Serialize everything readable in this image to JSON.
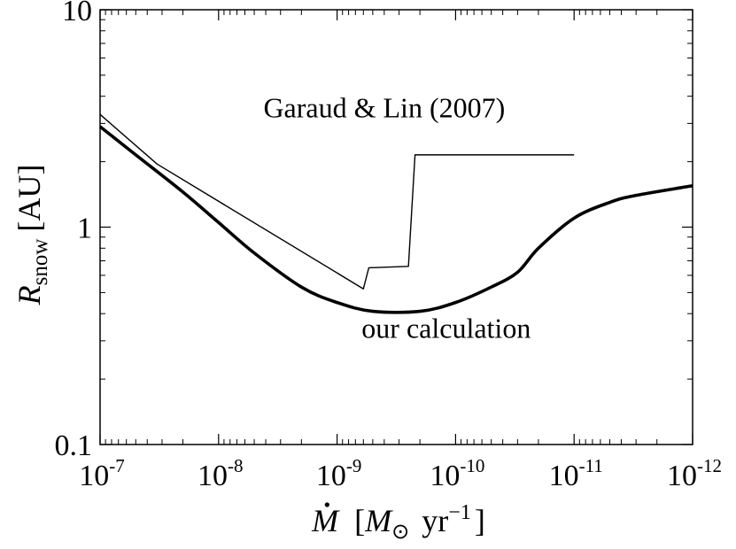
{
  "chart_data": {
    "type": "line",
    "x_axis": {
      "scale": "log",
      "reversed": true,
      "lim": [
        1e-07,
        1e-12
      ],
      "ticks": [
        1e-07,
        1e-08,
        1e-09,
        1e-10,
        1e-11,
        1e-12
      ],
      "tick_labels": [
        {
          "base": "10",
          "exp": "-7"
        },
        {
          "base": "10",
          "exp": "-8"
        },
        {
          "base": "10",
          "exp": "-9"
        },
        {
          "base": "10",
          "exp": "-10"
        },
        {
          "base": "10",
          "exp": "-11"
        },
        {
          "base": "10",
          "exp": "-12"
        }
      ],
      "label": {
        "symbol": "M",
        "open": "[",
        "sub_symbol": "M",
        "sub": "⊙",
        "unit": "yr",
        "unit_exp": "−1",
        "close": "]"
      }
    },
    "y_axis": {
      "scale": "log",
      "lim": [
        0.1,
        10
      ],
      "ticks": [
        0.1,
        1,
        10
      ],
      "tick_labels": [
        "0.1",
        "1",
        "10"
      ],
      "label": {
        "symbol": "R",
        "sub": "snow",
        "unit": "[AU]"
      }
    },
    "grid": false,
    "series": [
      {
        "name": "Garaud & Lin (2007)",
        "color": "#000000",
        "style": "thin",
        "x": [
          1e-07,
          3.3e-08,
          6e-10,
          5.4e-10,
          2.5e-10,
          2.2e-10,
          1e-11
        ],
        "y": [
          3.3,
          1.95,
          0.52,
          0.65,
          0.66,
          2.15,
          2.15
        ]
      },
      {
        "name": "our calculation",
        "color": "#000000",
        "style": "thick",
        "x": [
          1e-07,
          5e-08,
          2e-08,
          1e-08,
          5e-09,
          2e-09,
          1e-09,
          5e-10,
          2e-10,
          1e-10,
          5e-11,
          3e-11,
          2e-11,
          1e-11,
          5e-12,
          3e-12,
          1e-12
        ],
        "y": [
          2.9,
          2.15,
          1.45,
          1.05,
          0.76,
          0.53,
          0.45,
          0.41,
          0.41,
          0.45,
          0.53,
          0.62,
          0.8,
          1.1,
          1.3,
          1.4,
          1.55
        ]
      }
    ],
    "annotations": [
      {
        "text": "Garaud & Lin (2007)",
        "x": 4e-10,
        "y": 3.2
      },
      {
        "text": "our calculation",
        "x": 1.2e-10,
        "y": 0.31
      }
    ]
  }
}
